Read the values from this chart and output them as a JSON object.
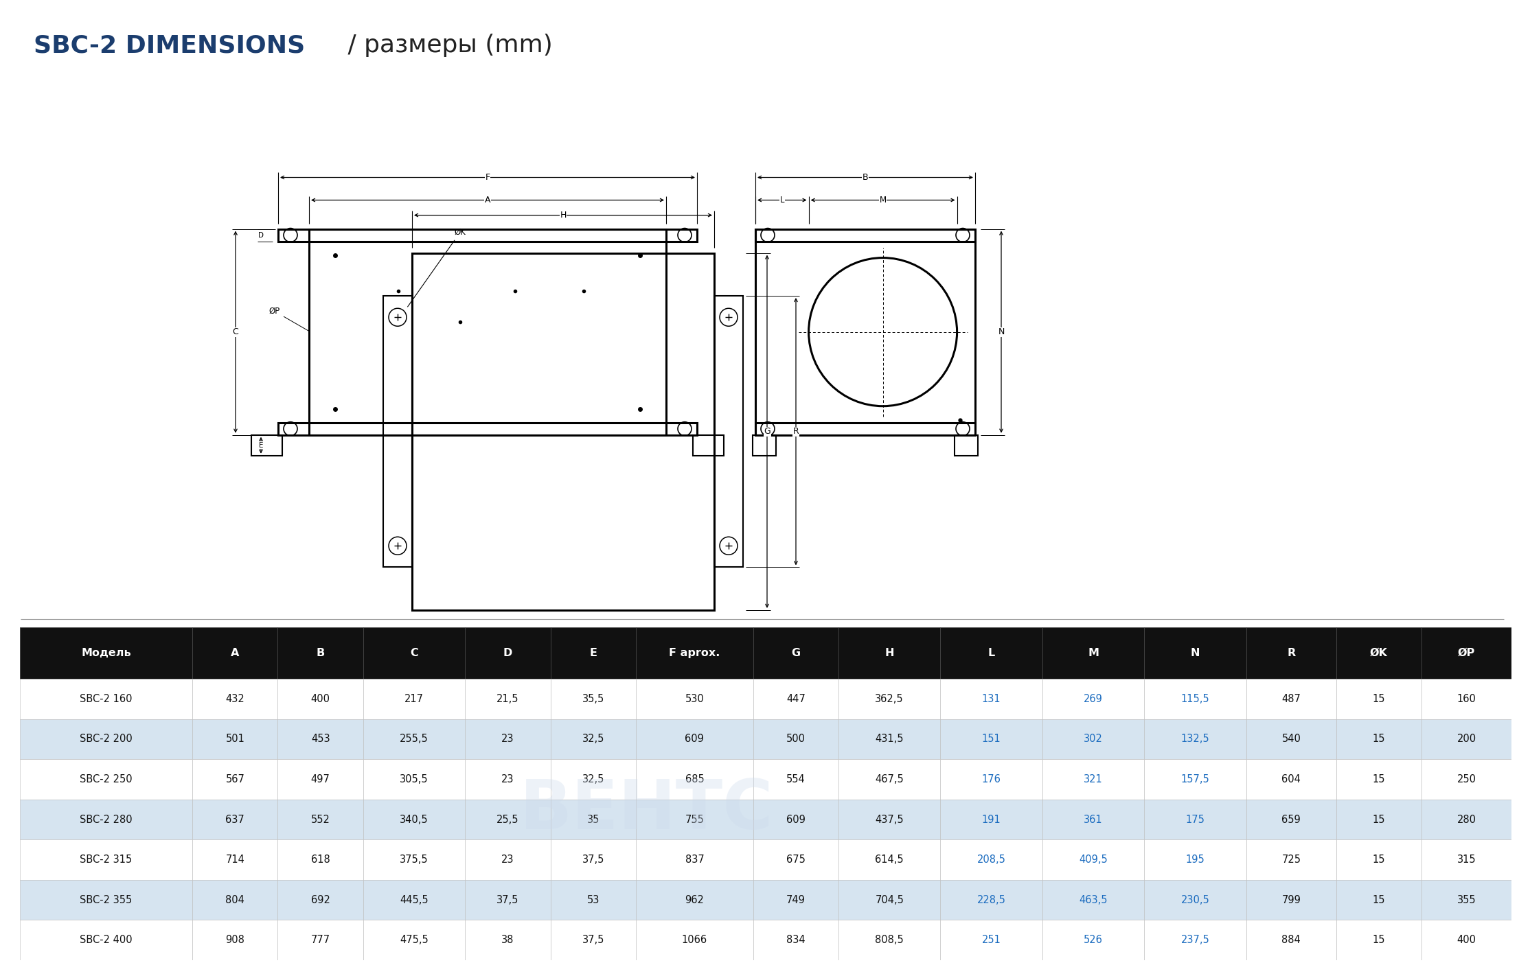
{
  "title_bold": "SBC-2 DIMENSIONS",
  "title_slash": " / ",
  "title_normal": "размеры (mm)",
  "title_color_bold": "#1b3d6e",
  "title_color_normal": "#222222",
  "title_fontsize": 26,
  "bg_color": "#ffffff",
  "header_bg": "#111111",
  "header_fg": "#ffffff",
  "row_bg_alt": "#d6e4f0",
  "row_bg_norm": "#ffffff",
  "row_fg": "#111111",
  "highlight_fg": "#1a6bbf",
  "table_headers": [
    "Модель",
    "A",
    "B",
    "C",
    "D",
    "E",
    "F aprox.",
    "G",
    "H",
    "L",
    "M",
    "N",
    "R",
    "ØK",
    "ØP"
  ],
  "table_data": [
    [
      "SBC-2 160",
      "432",
      "400",
      "217",
      "21,5",
      "35,5",
      "530",
      "447",
      "362,5",
      "131",
      "269",
      "115,5",
      "487",
      "15",
      "160"
    ],
    [
      "SBC-2 200",
      "501",
      "453",
      "255,5",
      "23",
      "32,5",
      "609",
      "500",
      "431,5",
      "151",
      "302",
      "132,5",
      "540",
      "15",
      "200"
    ],
    [
      "SBC-2 250",
      "567",
      "497",
      "305,5",
      "23",
      "32,5",
      "685",
      "554",
      "467,5",
      "176",
      "321",
      "157,5",
      "604",
      "15",
      "250"
    ],
    [
      "SBC-2 280",
      "637",
      "552",
      "340,5",
      "25,5",
      "35",
      "755",
      "609",
      "437,5",
      "191",
      "361",
      "175",
      "659",
      "15",
      "280"
    ],
    [
      "SBC-2 315",
      "714",
      "618",
      "375,5",
      "23",
      "37,5",
      "837",
      "675",
      "614,5",
      "208,5",
      "409,5",
      "195",
      "725",
      "15",
      "315"
    ],
    [
      "SBC-2 355",
      "804",
      "692",
      "445,5",
      "37,5",
      "53",
      "962",
      "749",
      "704,5",
      "228,5",
      "463,5",
      "230,5",
      "799",
      "15",
      "355"
    ],
    [
      "SBC-2 400",
      "908",
      "777",
      "475,5",
      "38",
      "37,5",
      "1066",
      "834",
      "808,5",
      "251",
      "526",
      "237,5",
      "884",
      "15",
      "400"
    ]
  ],
  "highlight_col_indices": [
    9,
    10,
    11
  ],
  "lc": "#000000",
  "lw": 1.5,
  "lw_thick": 2.2
}
